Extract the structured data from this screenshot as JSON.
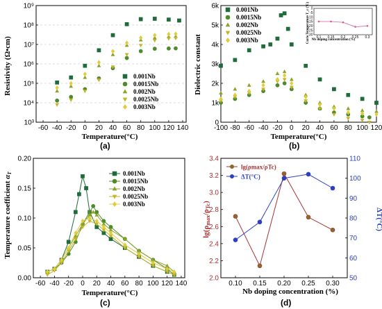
{
  "chart_data": [
    {
      "id": "a",
      "type": "scatter",
      "panel_label": "(a)",
      "xlabel": "Temperature(°C)",
      "ylabel": "Resistivity (Ω•cm)",
      "xlim": [
        -70,
        145
      ],
      "xticks": [
        -60,
        -40,
        -20,
        0,
        20,
        40,
        60,
        80,
        100,
        120,
        140
      ],
      "yscale": "log",
      "ylim": [
        1000,
        1000000000
      ],
      "yticks": [
        1000,
        10000,
        100000,
        1000000,
        10000000,
        100000000,
        1000000000
      ],
      "ytick_labels": [
        "10³",
        "10⁴",
        "10⁵",
        "10⁶",
        "10⁷",
        "10⁸",
        "10⁹"
      ],
      "grid": "horizontal-dashed",
      "legend": "bottom-right",
      "series": [
        {
          "name": "0.001Nb",
          "color": "#1f6b3a",
          "marker": "square",
          "x": [
            -40,
            -20,
            0,
            20,
            40,
            60,
            80,
            100,
            120,
            135
          ],
          "y": [
            110000,
            200000,
            800000,
            5000000,
            30000000,
            110000000,
            200000000,
            210000000,
            190000000,
            170000000
          ]
        },
        {
          "name": "0.0015Nb",
          "color": "#4f8a2d",
          "marker": "circle",
          "x": [
            -40,
            -20,
            0,
            20,
            40,
            60,
            80,
            100,
            120,
            130
          ],
          "y": [
            13000,
            20000,
            50000,
            180000,
            600000,
            2000000,
            4500000,
            6000000,
            6200000,
            6300000
          ]
        },
        {
          "name": "0.002Nb",
          "color": "#8aa32a",
          "marker": "triangle-up",
          "x": [
            -40,
            -20,
            0,
            20,
            40,
            60,
            80,
            100,
            120,
            130
          ],
          "y": [
            40000,
            70000,
            200000,
            800000,
            3000000,
            9000000,
            17000000,
            22000000,
            25000000,
            26000000
          ]
        },
        {
          "name": "0.0025Nb",
          "color": "#c2b52a",
          "marker": "triangle-down",
          "x": [
            -40,
            -20,
            0,
            20,
            40,
            60,
            80,
            100,
            120,
            130
          ],
          "y": [
            8000,
            14000,
            40000,
            150000,
            700000,
            3000000,
            9000000,
            16000000,
            20000000,
            21000000
          ]
        },
        {
          "name": "0.003Nb",
          "color": "#e3cc3a",
          "marker": "diamond",
          "x": [
            -40,
            -20,
            0,
            20,
            40,
            60,
            80,
            100,
            120,
            130
          ],
          "y": [
            60000,
            100000,
            300000,
            1200000,
            4500000,
            12000000,
            22000000,
            30000000,
            34000000,
            35000000
          ]
        }
      ]
    },
    {
      "id": "b",
      "type": "scatter",
      "panel_label": "(b)",
      "xlabel": "Temperature(°C)",
      "ylabel": "Dielectric constant",
      "xlim": [
        -100,
        120
      ],
      "xticks": [
        -100,
        -80,
        -60,
        -40,
        -20,
        0,
        20,
        40,
        60,
        80,
        100,
        120
      ],
      "ylim": [
        0,
        6000
      ],
      "yticks": [
        0,
        1000,
        2000,
        3000,
        4000,
        5000,
        6000
      ],
      "ytick_labels": [
        "0",
        "1k",
        "2k",
        "3k",
        "4k",
        "5k",
        "6k"
      ],
      "legend": "top-left",
      "series": [
        {
          "name": "0.001Nb",
          "color": "#1f6b3a",
          "marker": "square",
          "x": [
            -100,
            -80,
            -60,
            -40,
            -30,
            -20,
            -15,
            -10,
            -5,
            0,
            20,
            40,
            60,
            80,
            100,
            120
          ],
          "y": [
            2900,
            3200,
            3700,
            3900,
            4000,
            4300,
            5500,
            5600,
            4800,
            4000,
            2900,
            2200,
            1700,
            1400,
            1200,
            1000
          ]
        },
        {
          "name": "0.0015Nb",
          "color": "#4f8a2d",
          "marker": "circle",
          "x": [
            -100,
            -80,
            -60,
            -40,
            -20,
            -10,
            0,
            20,
            40,
            60,
            80,
            100,
            110
          ],
          "y": [
            1000,
            1200,
            1400,
            1600,
            1900,
            2000,
            1700,
            1000,
            700,
            500,
            400,
            300,
            250
          ]
        },
        {
          "name": "0.002Nb",
          "color": "#8aa32a",
          "marker": "triangle-up",
          "x": [
            -100,
            -80,
            -60,
            -40,
            -20,
            -10,
            0,
            20,
            40,
            60,
            80,
            100,
            120
          ],
          "y": [
            1500,
            1700,
            1900,
            2100,
            2500,
            2600,
            2200,
            1400,
            1000,
            800,
            700,
            600,
            550
          ]
        },
        {
          "name": "0.0025Nb",
          "color": "#c2b52a",
          "marker": "triangle-down",
          "x": [
            -100,
            -80,
            -60,
            -40,
            -20,
            -10,
            0,
            20,
            40,
            60,
            80,
            100,
            110
          ],
          "y": [
            1100,
            1300,
            1500,
            1700,
            2100,
            2200,
            1800,
            1100,
            700,
            400,
            200,
            100,
            0
          ]
        },
        {
          "name": "0.003Nb",
          "color": "#e3cc3a",
          "marker": "diamond",
          "x": [
            -100,
            -80,
            -60,
            -40,
            -20,
            -10,
            0,
            20,
            40,
            60,
            80,
            100,
            120
          ],
          "y": [
            1200,
            1400,
            1600,
            1900,
            2200,
            2400,
            2000,
            1300,
            900,
            700,
            500,
            450,
            400
          ]
        }
      ],
      "inset": {
        "type": "line",
        "xlabel": "Nb doping concentration (%)",
        "ylabel": "Curie Temperature T_c (°C)",
        "x": [
          0.1,
          0.15,
          0.2,
          0.25,
          0.3
        ],
        "xtick_labels": [
          "0.1",
          "0.15",
          "0.2",
          "0.25",
          "0.3"
        ],
        "y": [
          -15,
          -15,
          -16,
          -21,
          -20
        ],
        "ylim": [
          -30,
          0
        ],
        "yticks": [
          0,
          -5,
          -10,
          -15,
          -20,
          -25,
          -30
        ],
        "color": "#d6609a"
      }
    },
    {
      "id": "c",
      "type": "line",
      "panel_label": "(c)",
      "xlabel": "Temperature(°C)",
      "ylabel": "Temperature coefficient αT",
      "ylabel_main": "Temperature coefficient ",
      "ylabel_symbol": "α",
      "ylabel_sub": "T",
      "xlim": [
        -70,
        145
      ],
      "xticks": [
        -60,
        -40,
        -20,
        0,
        20,
        40,
        60,
        80,
        100,
        120,
        140
      ],
      "ylim": [
        0,
        0.2
      ],
      "yticks": [
        0,
        0.05,
        0.1,
        0.15,
        0.2
      ],
      "ytick_labels": [
        "0.00",
        "0.05",
        "0.10",
        "0.15",
        "0.20"
      ],
      "legend": "top-right",
      "series": [
        {
          "name": "0.001Nb",
          "color": "#1f6b3a",
          "marker": "square",
          "x": [
            -50,
            -40,
            -30,
            -20,
            -10,
            -5,
            0,
            5,
            10,
            20,
            30,
            40,
            60,
            80,
            100,
            120,
            130
          ],
          "y": [
            0.01,
            0.015,
            0.03,
            0.06,
            0.11,
            0.14,
            0.17,
            0.15,
            0.11,
            0.085,
            0.075,
            0.065,
            0.05,
            0.035,
            0.02,
            0.01,
            0.005
          ]
        },
        {
          "name": "0.0015Nb",
          "color": "#4f8a2d",
          "marker": "circle",
          "x": [
            -50,
            -40,
            -30,
            -20,
            -10,
            0,
            10,
            15,
            20,
            30,
            40,
            60,
            80,
            100,
            120,
            130
          ],
          "y": [
            0.01,
            0.015,
            0.025,
            0.04,
            0.06,
            0.09,
            0.11,
            0.12,
            0.11,
            0.095,
            0.085,
            0.065,
            0.045,
            0.03,
            0.015,
            0.005
          ]
        },
        {
          "name": "0.002Nb",
          "color": "#8aa32a",
          "marker": "triangle-up",
          "x": [
            -50,
            -40,
            -30,
            -20,
            -10,
            0,
            10,
            15,
            20,
            30,
            40,
            60,
            80,
            100,
            120,
            130
          ],
          "y": [
            0.01,
            0.015,
            0.03,
            0.05,
            0.07,
            0.09,
            0.105,
            0.11,
            0.105,
            0.09,
            0.08,
            0.065,
            0.045,
            0.03,
            0.02,
            0.01
          ]
        },
        {
          "name": "0.0025Nb",
          "color": "#c2b52a",
          "marker": "triangle-down",
          "x": [
            -50,
            -40,
            -30,
            -20,
            -10,
            0,
            10,
            20,
            30,
            40,
            60,
            80,
            100,
            120,
            130
          ],
          "y": [
            0.005,
            0.012,
            0.025,
            0.045,
            0.065,
            0.085,
            0.095,
            0.09,
            0.08,
            0.07,
            0.05,
            0.035,
            0.02,
            0.01,
            0.005
          ]
        },
        {
          "name": "0.003Nb",
          "color": "#e3cc3a",
          "marker": "diamond",
          "x": [
            -50,
            -40,
            -30,
            -20,
            -10,
            0,
            10,
            20,
            30,
            40,
            60,
            80,
            100,
            120,
            130
          ],
          "y": [
            0.01,
            0.015,
            0.03,
            0.05,
            0.075,
            0.095,
            0.1,
            0.095,
            0.085,
            0.075,
            0.055,
            0.04,
            0.025,
            0.015,
            0.01
          ]
        }
      ]
    },
    {
      "id": "d",
      "type": "line",
      "panel_label": "(d)",
      "xlabel": "Nb doping concentration (%)",
      "x": [
        0.1,
        0.15,
        0.2,
        0.25,
        0.3
      ],
      "xtick_labels": [
        "0.10",
        "0.15",
        "0.20",
        "0.25",
        "0.30"
      ],
      "xlim": [
        0.07,
        0.33
      ],
      "ylabel_left": "lg(ρmax/ρTc)",
      "ylim_left": [
        2.0,
        3.4
      ],
      "yticks_left": [
        2.0,
        2.2,
        2.4,
        2.6,
        2.8,
        3.0,
        3.2,
        3.4
      ],
      "ytick_labels_left": [
        "2.0",
        "2.2",
        "2.4",
        "2.6",
        "2.8",
        "3.0",
        "3.2",
        "3.4"
      ],
      "ylabel_right": "ΔT(°C)",
      "ylim_right": [
        50,
        110
      ],
      "yticks_right": [
        50,
        60,
        70,
        80,
        90,
        100,
        110
      ],
      "ytick_labels_right": [
        "50",
        "60",
        "70",
        "80",
        "90",
        "100",
        "110"
      ],
      "legend": "top-left",
      "series": [
        {
          "name": "lg(ρmax/ρTc)",
          "axis": "left",
          "color": "#a83232",
          "marker": "circle-filled",
          "y": [
            2.72,
            2.14,
            3.22,
            2.71,
            2.56
          ]
        },
        {
          "name": "ΔT(°C)",
          "axis": "right",
          "color": "#2b3fc4",
          "marker": "circle-filled",
          "y": [
            69,
            78,
            100,
            102,
            95
          ]
        }
      ]
    }
  ]
}
